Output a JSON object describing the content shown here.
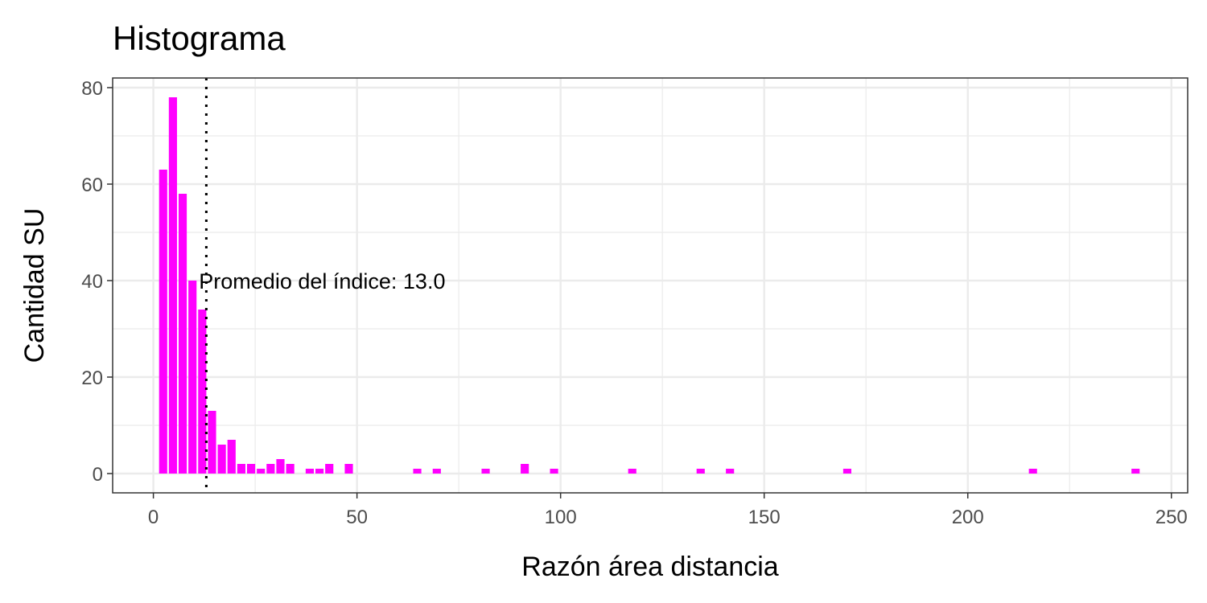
{
  "chart_data": {
    "type": "bar",
    "title": "Histograma",
    "xlabel": "Razón área distancia",
    "ylabel": "Cantidad SU",
    "xlim": [
      -10,
      254
    ],
    "ylim": [
      -4,
      82
    ],
    "x_ticks": [
      0,
      50,
      100,
      150,
      200,
      250
    ],
    "y_ticks": [
      0,
      20,
      40,
      60,
      80
    ],
    "grid": true,
    "bin_width": 2.4,
    "bar_color": "#FF00FF",
    "bins": [
      {
        "x": 2.4,
        "count": 63
      },
      {
        "x": 4.8,
        "count": 78
      },
      {
        "x": 7.2,
        "count": 58
      },
      {
        "x": 9.6,
        "count": 40
      },
      {
        "x": 12.0,
        "count": 34
      },
      {
        "x": 14.4,
        "count": 13
      },
      {
        "x": 16.8,
        "count": 6
      },
      {
        "x": 19.2,
        "count": 7
      },
      {
        "x": 21.6,
        "count": 2
      },
      {
        "x": 24.0,
        "count": 2
      },
      {
        "x": 26.4,
        "count": 1
      },
      {
        "x": 28.8,
        "count": 2
      },
      {
        "x": 31.2,
        "count": 3
      },
      {
        "x": 33.6,
        "count": 2
      },
      {
        "x": 38.4,
        "count": 1
      },
      {
        "x": 40.8,
        "count": 1
      },
      {
        "x": 43.2,
        "count": 2
      },
      {
        "x": 48.0,
        "count": 2
      },
      {
        "x": 64.8,
        "count": 1
      },
      {
        "x": 69.6,
        "count": 1
      },
      {
        "x": 81.6,
        "count": 1
      },
      {
        "x": 91.2,
        "count": 2
      },
      {
        "x": 98.4,
        "count": 1
      },
      {
        "x": 117.6,
        "count": 1
      },
      {
        "x": 134.4,
        "count": 1
      },
      {
        "x": 141.6,
        "count": 1
      },
      {
        "x": 170.4,
        "count": 1
      },
      {
        "x": 216.0,
        "count": 1
      },
      {
        "x": 241.2,
        "count": 1
      }
    ],
    "mean_line": {
      "x": 13.0,
      "style": "dotted",
      "color": "#000000"
    },
    "annotation": {
      "text": "Promedio del índice: 13.0",
      "x": 11.2,
      "y": 40
    }
  }
}
